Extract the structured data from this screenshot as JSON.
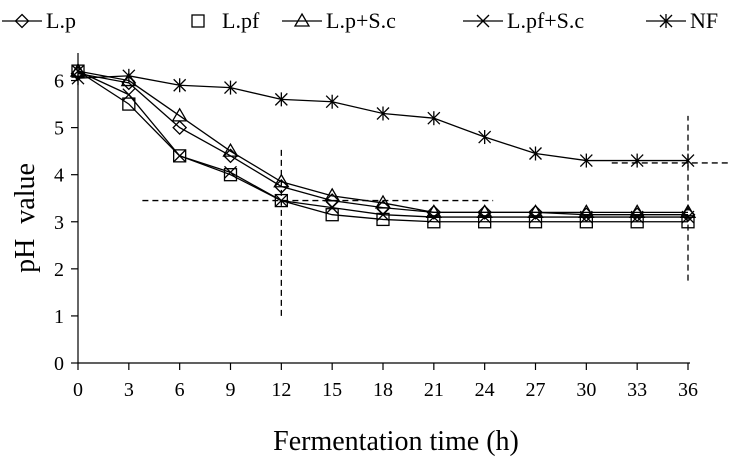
{
  "chart_data": {
    "type": "line",
    "title": "",
    "xlabel": "Fermentation time (h)",
    "ylabel": "pH value",
    "xlim": [
      0,
      36
    ],
    "ylim": [
      0,
      6.5
    ],
    "x": [
      0,
      3,
      6,
      9,
      12,
      15,
      18,
      21,
      24,
      27,
      30,
      33,
      36
    ],
    "x_ticks": [
      "0",
      "3",
      "6",
      "9",
      "12",
      "15",
      "18",
      "21",
      "24",
      "27",
      "30",
      "33",
      "36"
    ],
    "y_ticks": [
      "0",
      "1",
      "2",
      "3",
      "4",
      "5",
      "6"
    ],
    "grid": false,
    "legend_position": "top",
    "series": [
      {
        "name": "L.p",
        "marker": "diamond",
        "values": [
          6.15,
          5.95,
          5.0,
          4.4,
          3.75,
          3.45,
          3.3,
          3.2,
          3.2,
          3.2,
          3.15,
          3.15,
          3.15
        ]
      },
      {
        "name": "L.pf",
        "marker": "square",
        "values": [
          6.2,
          5.5,
          4.4,
          4.0,
          3.45,
          3.15,
          3.05,
          3.0,
          3.0,
          3.0,
          3.0,
          3.0,
          3.0
        ]
      },
      {
        "name": "L.p+S.c",
        "marker": "triangle",
        "values": [
          6.2,
          6.0,
          5.25,
          4.5,
          3.85,
          3.55,
          3.4,
          3.2,
          3.2,
          3.2,
          3.2,
          3.2,
          3.2
        ]
      },
      {
        "name": "L.pf+S.c",
        "marker": "x",
        "values": [
          6.2,
          5.7,
          4.4,
          4.05,
          3.45,
          3.3,
          3.15,
          3.1,
          3.1,
          3.1,
          3.1,
          3.1,
          3.1
        ]
      },
      {
        "name": "NF",
        "marker": "asterisk",
        "values": [
          6.05,
          6.1,
          5.9,
          5.85,
          5.6,
          5.55,
          5.3,
          5.2,
          4.8,
          4.45,
          4.3,
          4.3,
          4.3
        ]
      }
    ],
    "reference_lines": [
      {
        "orientation": "horizontal",
        "y": 3.45,
        "x_from": 3.8,
        "x_to": 24.5
      },
      {
        "orientation": "vertical",
        "x": 12,
        "y_from": 1.0,
        "y_to": 4.55
      },
      {
        "orientation": "horizontal",
        "y": 4.25,
        "x_from": 31.5,
        "x_to": 38.5
      },
      {
        "orientation": "vertical",
        "x": 36,
        "y_from": 1.75,
        "y_to": 5.25
      }
    ]
  }
}
